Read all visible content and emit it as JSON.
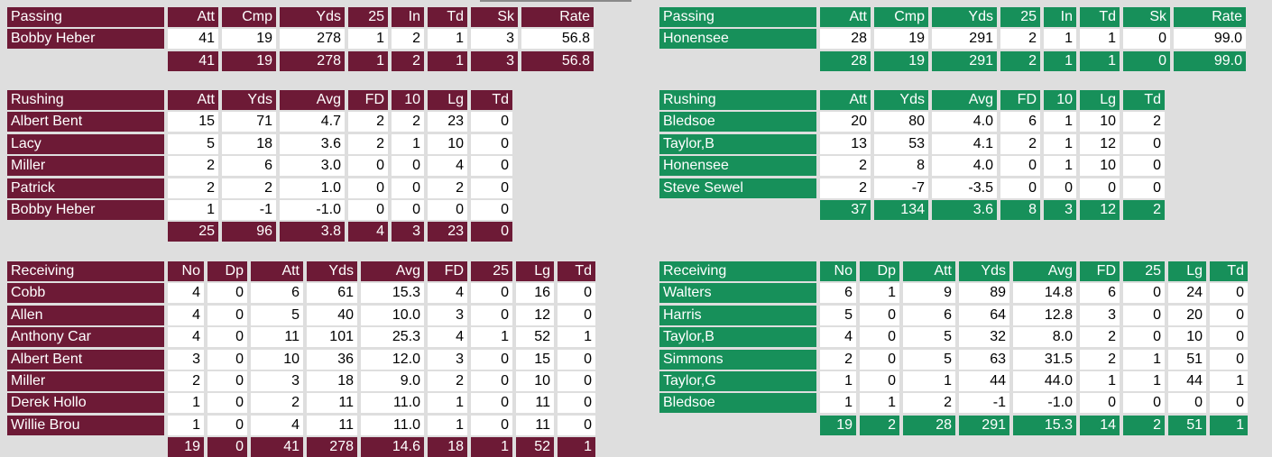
{
  "teams": [
    {
      "passing": {
        "header": [
          "Passing",
          "Att",
          "Cmp",
          "Yds",
          "25",
          "In",
          "Td",
          "Sk",
          "Rate"
        ],
        "rows": [
          [
            "Bobby Heber",
            "41",
            "19",
            "278",
            "1",
            "2",
            "1",
            "3",
            "56.8"
          ]
        ],
        "totals": [
          "41",
          "19",
          "278",
          "1",
          "2",
          "1",
          "3",
          "56.8"
        ]
      },
      "rushing": {
        "header": [
          "Rushing",
          "Att",
          "Yds",
          "Avg",
          "FD",
          "10",
          "Lg",
          "Td"
        ],
        "rows": [
          [
            "Albert Bent",
            "15",
            "71",
            "4.7",
            "2",
            "2",
            "23",
            "0"
          ],
          [
            "Lacy",
            "5",
            "18",
            "3.6",
            "2",
            "1",
            "10",
            "0"
          ],
          [
            "Miller",
            "2",
            "6",
            "3.0",
            "0",
            "0",
            "4",
            "0"
          ],
          [
            "Patrick",
            "2",
            "2",
            "1.0",
            "0",
            "0",
            "2",
            "0"
          ],
          [
            "Bobby Heber",
            "1",
            "-1",
            "-1.0",
            "0",
            "0",
            "0",
            "0"
          ]
        ],
        "totals": [
          "25",
          "96",
          "3.8",
          "4",
          "3",
          "23",
          "0"
        ]
      },
      "receiving": {
        "header": [
          "Receiving",
          "No",
          "Dp",
          "Att",
          "Yds",
          "Avg",
          "FD",
          "25",
          "Lg",
          "Td"
        ],
        "rows": [
          [
            "Cobb",
            "4",
            "0",
            "6",
            "61",
            "15.3",
            "4",
            "0",
            "16",
            "0"
          ],
          [
            "Allen",
            "4",
            "0",
            "5",
            "40",
            "10.0",
            "3",
            "0",
            "12",
            "0"
          ],
          [
            "Anthony Car",
            "4",
            "0",
            "11",
            "101",
            "25.3",
            "4",
            "1",
            "52",
            "1"
          ],
          [
            "Albert Bent",
            "3",
            "0",
            "10",
            "36",
            "12.0",
            "3",
            "0",
            "15",
            "0"
          ],
          [
            "Miller",
            "2",
            "0",
            "3",
            "18",
            "9.0",
            "2",
            "0",
            "10",
            "0"
          ],
          [
            "Derek Hollo",
            "1",
            "0",
            "2",
            "11",
            "11.0",
            "1",
            "0",
            "11",
            "0"
          ],
          [
            "Willie Brou",
            "1",
            "0",
            "4",
            "11",
            "11.0",
            "1",
            "0",
            "11",
            "0"
          ]
        ],
        "totals": [
          "19",
          "0",
          "41",
          "278",
          "14.6",
          "18",
          "1",
          "52",
          "1"
        ]
      }
    },
    {
      "passing": {
        "header": [
          "Passing",
          "Att",
          "Cmp",
          "Yds",
          "25",
          "In",
          "Td",
          "Sk",
          "Rate"
        ],
        "rows": [
          [
            "Honensee",
            "28",
            "19",
            "291",
            "2",
            "1",
            "1",
            "0",
            "99.0"
          ]
        ],
        "totals": [
          "28",
          "19",
          "291",
          "2",
          "1",
          "1",
          "0",
          "99.0"
        ]
      },
      "rushing": {
        "header": [
          "Rushing",
          "Att",
          "Yds",
          "Avg",
          "FD",
          "10",
          "Lg",
          "Td"
        ],
        "rows": [
          [
            "Bledsoe",
            "20",
            "80",
            "4.0",
            "6",
            "1",
            "10",
            "2"
          ],
          [
            "Taylor,B",
            "13",
            "53",
            "4.1",
            "2",
            "1",
            "12",
            "0"
          ],
          [
            "Honensee",
            "2",
            "8",
            "4.0",
            "0",
            "1",
            "10",
            "0"
          ],
          [
            "Steve Sewel",
            "2",
            "-7",
            "-3.5",
            "0",
            "0",
            "0",
            "0"
          ]
        ],
        "totals": [
          "37",
          "134",
          "3.6",
          "8",
          "3",
          "12",
          "2"
        ]
      },
      "receiving": {
        "header": [
          "Receiving",
          "No",
          "Dp",
          "Att",
          "Yds",
          "Avg",
          "FD",
          "25",
          "Lg",
          "Td"
        ],
        "rows": [
          [
            "Walters",
            "6",
            "1",
            "9",
            "89",
            "14.8",
            "6",
            "0",
            "24",
            "0"
          ],
          [
            "Harris",
            "5",
            "0",
            "6",
            "64",
            "12.8",
            "3",
            "0",
            "20",
            "0"
          ],
          [
            "Taylor,B",
            "4",
            "0",
            "5",
            "32",
            "8.0",
            "2",
            "0",
            "10",
            "0"
          ],
          [
            "Simmons",
            "2",
            "0",
            "5",
            "63",
            "31.5",
            "2",
            "1",
            "51",
            "0"
          ],
          [
            "Taylor,G",
            "1",
            "0",
            "1",
            "44",
            "44.0",
            "1",
            "1",
            "44",
            "1"
          ],
          [
            "Bledsoe",
            "1",
            "1",
            "2",
            "-1",
            "-1.0",
            "0",
            "0",
            "0",
            "0"
          ]
        ],
        "totals": [
          "19",
          "2",
          "28",
          "291",
          "15.3",
          "14",
          "2",
          "51",
          "1"
        ]
      }
    }
  ]
}
